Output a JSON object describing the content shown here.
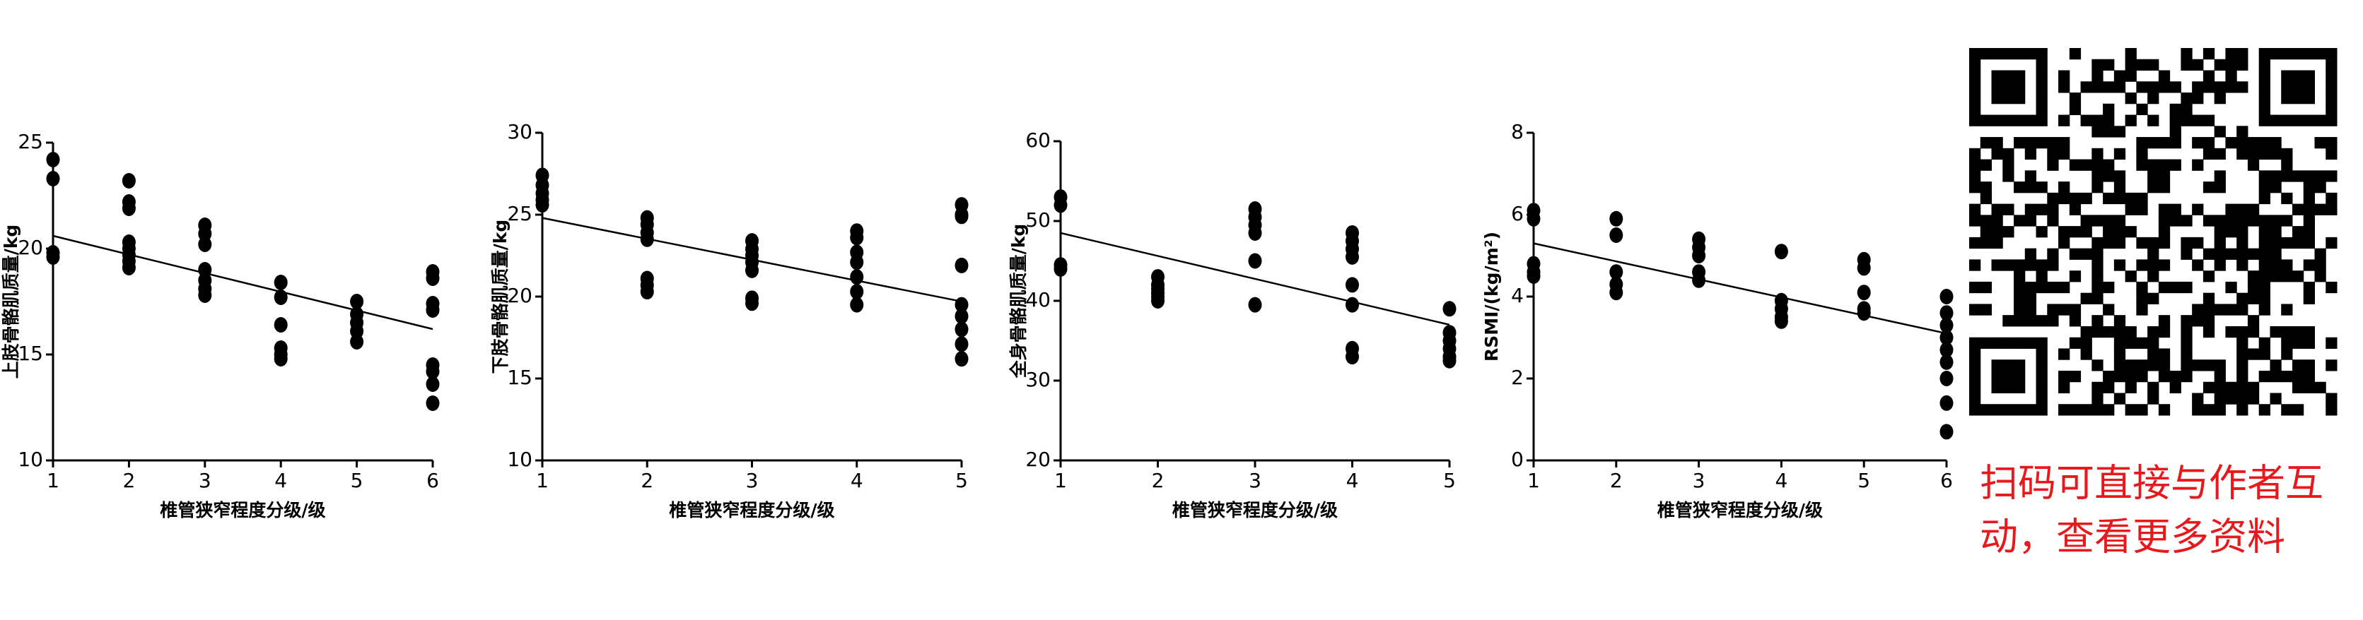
{
  "chart_data": [
    {
      "type": "scatter",
      "ylabel": "上肢骨骼肌质量/kg",
      "xlabel": "椎管狭窄程度分级/级",
      "color": "#000000",
      "xlim": [
        1,
        6
      ],
      "xticks": [
        1,
        2,
        3,
        4,
        5,
        6
      ],
      "ylim": [
        10,
        25
      ],
      "yticks": [
        10,
        15,
        20,
        25
      ],
      "x": [
        1,
        1,
        1,
        1,
        2,
        2,
        2,
        2,
        2,
        2,
        2,
        2,
        3,
        3,
        3,
        3,
        3,
        3,
        3,
        4,
        4,
        4,
        4,
        4,
        4,
        5,
        5,
        5,
        5,
        5,
        6,
        6,
        6,
        6,
        6,
        6,
        6,
        6
      ],
      "values": [
        24.2,
        23.3,
        19.8,
        19.6,
        23.2,
        22.2,
        21.9,
        20.3,
        20.0,
        19.7,
        19.4,
        19.1,
        21.1,
        20.7,
        20.2,
        19.0,
        18.5,
        18.1,
        17.8,
        18.4,
        17.7,
        16.4,
        15.3,
        15.0,
        14.8,
        17.5,
        16.9,
        16.5,
        16.1,
        15.6,
        18.9,
        18.6,
        17.4,
        17.1,
        14.5,
        14.2,
        13.6,
        12.7
      ],
      "trend_line": {
        "x": [
          1,
          6
        ],
        "values": [
          20.6,
          16.2
        ]
      }
    },
    {
      "type": "scatter",
      "ylabel": "下肢骨骼肌质量/kg",
      "xlabel": "椎管狭窄程度分级/级",
      "color": "#000000",
      "xlim": [
        1,
        5
      ],
      "xticks": [
        1,
        2,
        3,
        4,
        5
      ],
      "ylim": [
        10,
        30
      ],
      "yticks": [
        10,
        15,
        20,
        25,
        30
      ],
      "x": [
        1,
        1,
        1,
        1,
        1,
        2,
        2,
        2,
        2,
        2,
        2,
        2,
        3,
        3,
        3,
        3,
        3,
        3,
        3,
        4,
        4,
        4,
        4,
        4,
        4,
        4,
        5,
        5,
        5,
        5,
        5,
        5,
        5,
        5,
        5
      ],
      "values": [
        27.4,
        26.8,
        26.3,
        25.9,
        25.6,
        24.8,
        24.4,
        23.9,
        23.5,
        21.1,
        20.7,
        20.3,
        23.4,
        22.9,
        22.5,
        22.1,
        21.6,
        19.9,
        19.6,
        24.0,
        23.6,
        22.7,
        22.1,
        21.2,
        20.3,
        19.5,
        25.6,
        25.0,
        24.9,
        21.9,
        19.5,
        18.8,
        18.0,
        17.1,
        16.2
      ],
      "trend_line": {
        "x": [
          1,
          5
        ],
        "values": [
          24.8,
          19.7
        ]
      }
    },
    {
      "type": "scatter",
      "ylabel": "全身骨骼肌质量/kg",
      "xlabel": "椎管狭窄程度分级/级",
      "color": "#000000",
      "xlim": [
        1,
        5
      ],
      "xticks": [
        1,
        2,
        3,
        4,
        5
      ],
      "ylim": [
        20,
        60
      ],
      "yticks": [
        20,
        30,
        40,
        50,
        60
      ],
      "x": [
        1,
        1,
        1,
        1,
        2,
        2,
        2,
        2,
        2,
        2,
        3,
        3,
        3,
        3,
        3,
        3,
        4,
        4,
        4,
        4,
        4,
        4,
        4,
        4,
        5,
        5,
        5,
        5,
        5,
        5
      ],
      "values": [
        53,
        52,
        44.5,
        44,
        43,
        42,
        41.5,
        41,
        40.5,
        40,
        51.5,
        50.5,
        49.5,
        48.5,
        45,
        39.5,
        48.5,
        47.5,
        46.5,
        45.5,
        42,
        39.5,
        34,
        33,
        39,
        36,
        35,
        34,
        33,
        32.5
      ],
      "trend_line": {
        "x": [
          1,
          5
        ],
        "values": [
          48.5,
          37
        ]
      }
    },
    {
      "type": "scatter",
      "ylabel": "RSMI/(kg/m²)",
      "xlabel": "椎管狭窄程度分级/级",
      "color": "#000000",
      "xlim": [
        1,
        6
      ],
      "xticks": [
        1,
        2,
        3,
        4,
        5,
        6
      ],
      "ylim": [
        0,
        8
      ],
      "yticks": [
        0,
        2,
        4,
        6,
        8
      ],
      "x": [
        1,
        1,
        1,
        1,
        1,
        2,
        2,
        2,
        2,
        2,
        3,
        3,
        3,
        3,
        3,
        4,
        4,
        4,
        4,
        4,
        5,
        5,
        5,
        5,
        5,
        6,
        6,
        6,
        6,
        6,
        6,
        6,
        6,
        6
      ],
      "values": [
        6.1,
        5.9,
        4.8,
        4.6,
        4.5,
        5.9,
        5.5,
        4.6,
        4.3,
        4.1,
        5.4,
        5.2,
        5.0,
        4.6,
        4.4,
        5.1,
        3.9,
        3.7,
        3.5,
        3.4,
        4.9,
        4.7,
        4.1,
        3.7,
        3.6,
        4.0,
        3.6,
        3.3,
        3.0,
        2.7,
        2.4,
        2.0,
        1.4,
        0.7
      ],
      "trend_line": {
        "x": [
          1,
          6
        ],
        "values": [
          5.3,
          3.1
        ]
      }
    }
  ],
  "qr_caption": {
    "lines": [
      "扫码可直接与作者互",
      "动，查看更多资料"
    ]
  }
}
